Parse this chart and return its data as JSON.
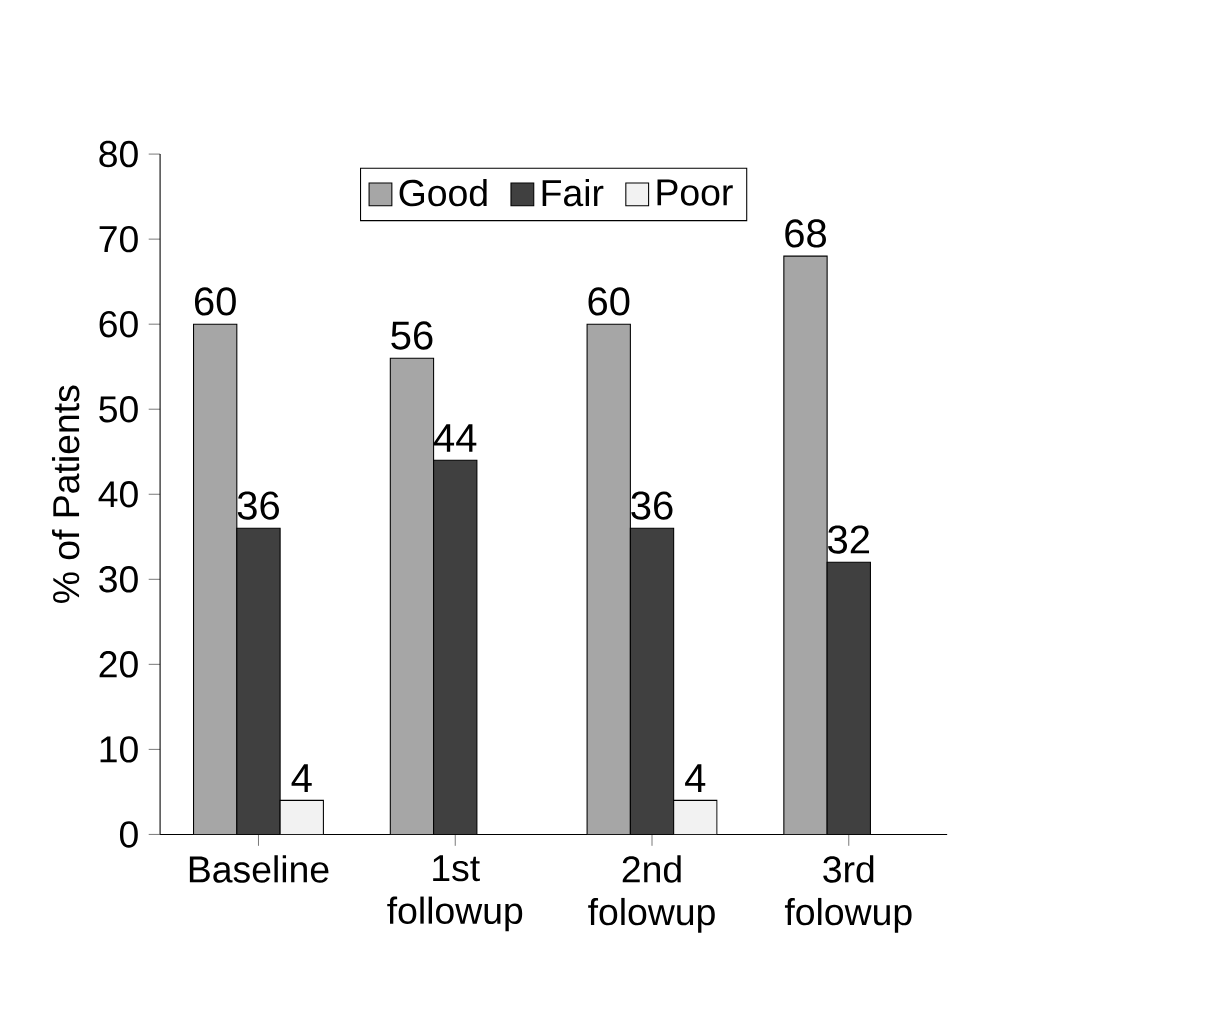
{
  "chart_data": {
    "type": "bar",
    "ylabel": "% of Patients",
    "categories": [
      "Baseline",
      "1st followup",
      "2nd folowup",
      "3rd folowup"
    ],
    "series": [
      {
        "name": "Good",
        "color": "#a6a6a6",
        "values": [
          60,
          56,
          60,
          68
        ]
      },
      {
        "name": "Fair",
        "color": "#404040",
        "values": [
          36,
          44,
          36,
          32
        ]
      },
      {
        "name": "Poor",
        "color": "#f2f2f2",
        "values": [
          4,
          null,
          4,
          null
        ]
      }
    ],
    "ylim": [
      0,
      80
    ],
    "yticks": [
      0,
      10,
      20,
      30,
      40,
      50,
      60,
      70,
      80
    ],
    "data_labels": true,
    "legend": "top",
    "grid": false
  }
}
